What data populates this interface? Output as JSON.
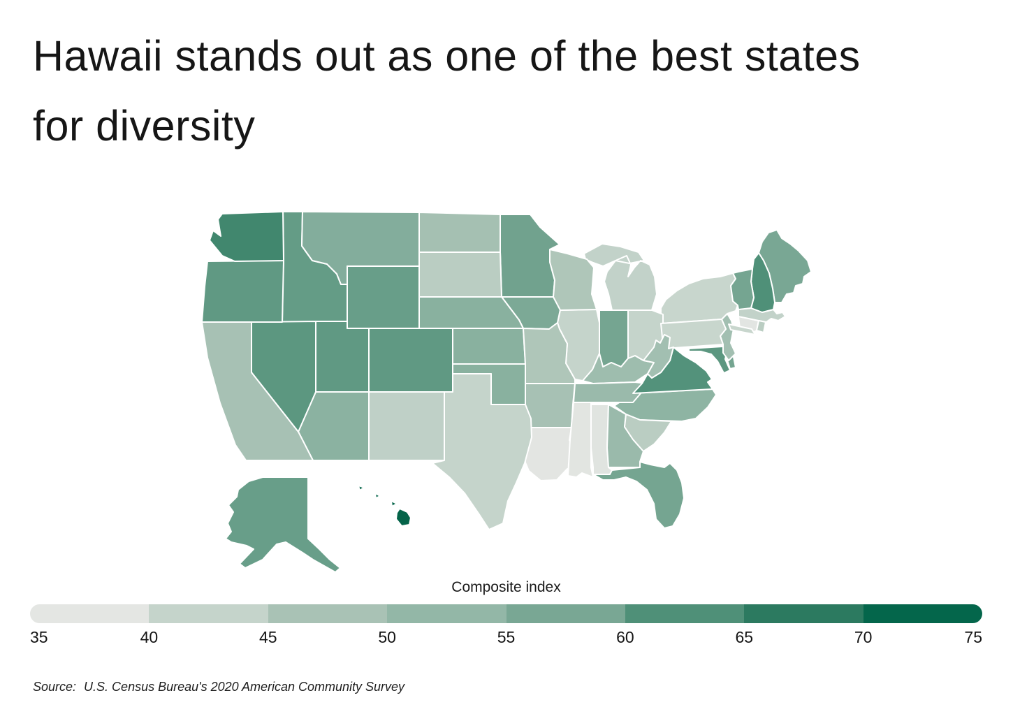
{
  "title": "Hawaii stands out as one of the best states for diversity",
  "legend": {
    "title": "Composite index",
    "ticks": [
      "35",
      "40",
      "45",
      "50",
      "55",
      "60",
      "65",
      "70",
      "75"
    ],
    "colors": [
      "#e4e6e3",
      "#c5d4cb",
      "#a9c2b5",
      "#93b7a7",
      "#79a794",
      "#4f9078",
      "#2c7a60",
      "#04664b"
    ]
  },
  "source": {
    "label": "Source:",
    "text": "U.S. Census Bureau's 2020 American Community Survey"
  },
  "chart_data": {
    "type": "choropleth",
    "title": "Hawaii stands out as one of the best states for diversity",
    "metric": "Composite index",
    "legend_position": "bottom",
    "scale": {
      "domain": [
        35,
        75
      ],
      "bin_size": 5,
      "anchors": [
        "#e4e6e3",
        "#c5d4cb",
        "#a9c2b5",
        "#93b7a7",
        "#79a794",
        "#4f9078",
        "#2c7a60",
        "#04664b",
        "#00523b"
      ]
    },
    "values_note": "No numeric labels are printed on the map; state values are estimated from each state's fill shade against the legend scale.",
    "states": [
      {
        "abbr": "AL",
        "name": "Alabama",
        "value": 35.6
      },
      {
        "abbr": "AK",
        "name": "Alaska",
        "value": 57
      },
      {
        "abbr": "AZ",
        "name": "Arizona",
        "value": 51.5
      },
      {
        "abbr": "AR",
        "name": "Arkansas",
        "value": 45.5
      },
      {
        "abbr": "CA",
        "name": "California",
        "value": 45.5
      },
      {
        "abbr": "CO",
        "name": "Colorado",
        "value": 58
      },
      {
        "abbr": "CT",
        "name": "Connecticut",
        "value": 35.3
      },
      {
        "abbr": "DE",
        "name": "Delaware",
        "value": 55.5
      },
      {
        "abbr": "FL",
        "name": "Florida",
        "value": 55.5
      },
      {
        "abbr": "GA",
        "name": "Georgia",
        "value": 48.5
      },
      {
        "abbr": "HI",
        "name": "Hawaii",
        "value": 70.5
      },
      {
        "abbr": "ID",
        "name": "Idaho",
        "value": 57.5
      },
      {
        "abbr": "IL",
        "name": "Illinois",
        "value": 40
      },
      {
        "abbr": "IN",
        "name": "Indiana",
        "value": 55.5
      },
      {
        "abbr": "IA",
        "name": "Iowa",
        "value": 54.5
      },
      {
        "abbr": "KS",
        "name": "Kansas",
        "value": 52
      },
      {
        "abbr": "KY",
        "name": "Kentucky",
        "value": 47.5
      },
      {
        "abbr": "LA",
        "name": "Louisiana",
        "value": 35.2
      },
      {
        "abbr": "ME",
        "name": "Maine",
        "value": 55
      },
      {
        "abbr": "MD",
        "name": "Maryland",
        "value": 58.5
      },
      {
        "abbr": "MA",
        "name": "Massachusetts",
        "value": 40.5
      },
      {
        "abbr": "MI",
        "name": "Michigan",
        "value": 40.5
      },
      {
        "abbr": "MN",
        "name": "Minnesota",
        "value": 56
      },
      {
        "abbr": "MS",
        "name": "Mississippi",
        "value": 35.4
      },
      {
        "abbr": "MO",
        "name": "Missouri",
        "value": 44
      },
      {
        "abbr": "MT",
        "name": "Montana",
        "value": 53
      },
      {
        "abbr": "NE",
        "name": "Nebraska",
        "value": 52
      },
      {
        "abbr": "NV",
        "name": "Nevada",
        "value": 58.5
      },
      {
        "abbr": "NH",
        "name": "New Hampshire",
        "value": 60
      },
      {
        "abbr": "NJ",
        "name": "New Jersey",
        "value": 46.5
      },
      {
        "abbr": "NM",
        "name": "New Mexico",
        "value": 41
      },
      {
        "abbr": "NY",
        "name": "New York",
        "value": 39.5
      },
      {
        "abbr": "NC",
        "name": "North Carolina",
        "value": 51
      },
      {
        "abbr": "ND",
        "name": "North Dakota",
        "value": 46
      },
      {
        "abbr": "OH",
        "name": "Ohio",
        "value": 40
      },
      {
        "abbr": "OK",
        "name": "Oklahoma",
        "value": 52
      },
      {
        "abbr": "OR",
        "name": "Oregon",
        "value": 58
      },
      {
        "abbr": "PA",
        "name": "Pennsylvania",
        "value": 39.5
      },
      {
        "abbr": "RI",
        "name": "Rhode Island",
        "value": 42
      },
      {
        "abbr": "SC",
        "name": "South Carolina",
        "value": 42
      },
      {
        "abbr": "SD",
        "name": "South Dakota",
        "value": 42
      },
      {
        "abbr": "TN",
        "name": "Tennessee",
        "value": 48.5
      },
      {
        "abbr": "TX",
        "name": "Texas",
        "value": 40
      },
      {
        "abbr": "UT",
        "name": "Utah",
        "value": 58
      },
      {
        "abbr": "VT",
        "name": "Vermont",
        "value": 55.5
      },
      {
        "abbr": "VA",
        "name": "Virginia",
        "value": 59.5
      },
      {
        "abbr": "WA",
        "name": "Washington",
        "value": 62
      },
      {
        "abbr": "WV",
        "name": "West Virginia",
        "value": 46.5
      },
      {
        "abbr": "WI",
        "name": "Wisconsin",
        "value": 44
      },
      {
        "abbr": "WY",
        "name": "Wyoming",
        "value": 57
      }
    ]
  }
}
